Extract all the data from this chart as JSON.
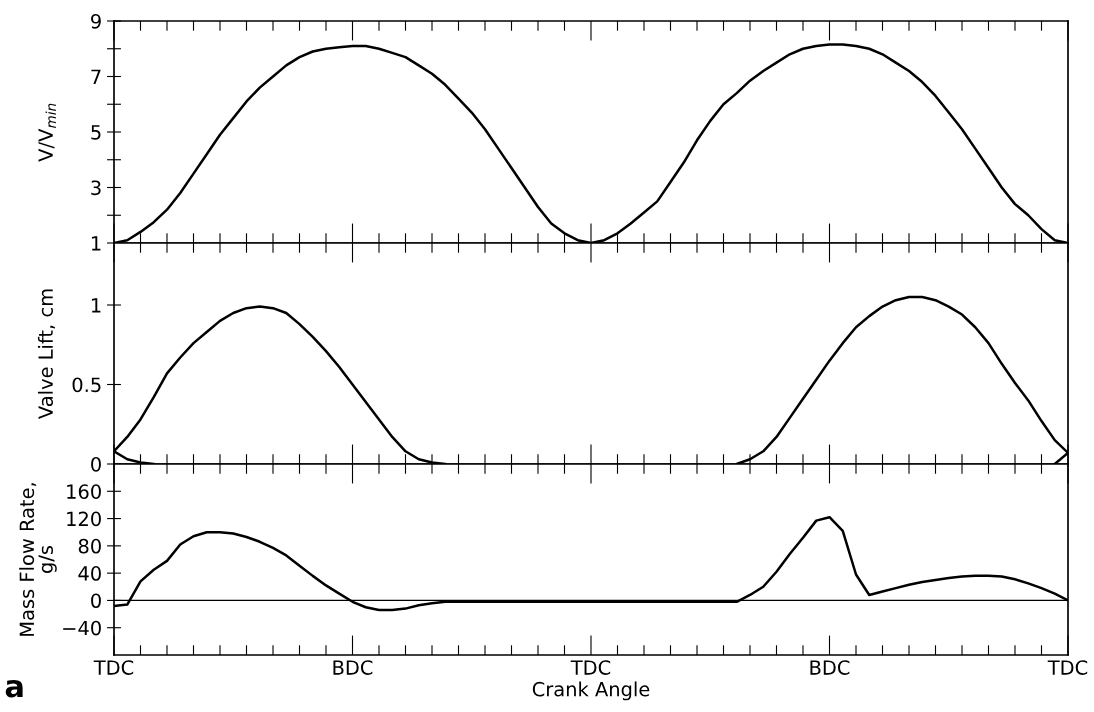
{
  "chart_data": [
    {
      "type": "line",
      "ylabel": "V/V$_{min}$",
      "ylim": [
        1,
        9
      ],
      "categories": [
        null,
        null,
        null,
        null,
        null,
        null,
        null,
        null,
        null,
        null,
        null,
        null,
        null,
        null,
        null,
        null,
        null,
        null,
        null,
        null,
        null,
        null,
        null,
        null,
        null,
        null,
        null,
        null,
        null,
        null,
        null,
        null,
        null,
        null,
        null,
        null,
        null,
        null,
        null,
        null,
        null,
        null,
        null,
        null,
        null,
        null,
        null,
        null,
        null,
        null,
        null,
        null,
        null,
        null,
        null,
        null,
        null,
        null,
        null,
        null,
        null,
        null,
        null,
        null,
        null,
        null,
        null,
        null,
        null,
        null,
        null,
        null,
        null
      ],
      "yticks": [
        1,
        {
          "value": 2,
          "label": null
        },
        3,
        {
          "value": 4,
          "label": null
        },
        5,
        {
          "value": 6,
          "label": null
        },
        7,
        {
          "value": 8,
          "label": null
        },
        9
      ],
      "tick_labels": "y",
      "line_style": "solid",
      "series": [
        {
          "color": "#000000",
          "values": [
            1.0,
            1.1,
            1.4,
            1.75,
            2.2,
            2.8,
            3.5,
            4.2,
            4.9,
            5.5,
            6.1,
            6.6,
            7.0,
            7.4,
            7.7,
            7.9,
            8.0,
            8.05,
            8.1,
            8.1,
            8.0,
            7.85,
            7.7,
            7.4,
            7.1,
            6.7,
            6.2,
            5.7,
            5.1,
            4.4,
            3.7,
            3.0,
            2.3,
            1.7,
            1.35,
            1.1,
            1.0,
            1.1,
            1.35,
            1.7,
            2.1,
            2.5,
            3.2,
            3.9,
            4.7,
            5.4,
            6.0,
            6.4,
            6.85,
            7.2,
            7.5,
            7.8,
            8.0,
            8.1,
            8.15,
            8.15,
            8.1,
            8.0,
            7.8,
            7.5,
            7.2,
            6.8,
            6.3,
            5.7,
            5.1,
            4.4,
            3.7,
            3.0,
            2.4,
            2.0,
            1.5,
            1.1,
            1.0
          ]
        }
      ]
    },
    {
      "type": "line",
      "ylabel": "Valve Lift, cm",
      "ylim": [
        0,
        1.39
      ],
      "categories": [
        null,
        null,
        null,
        null,
        null,
        null,
        null,
        null,
        null,
        null,
        null,
        null,
        null,
        null,
        null,
        null,
        null,
        null,
        null,
        null,
        null,
        null,
        null,
        null,
        null,
        null,
        null,
        null,
        null,
        null,
        null,
        null,
        null,
        null,
        null,
        null,
        null,
        null,
        null,
        null,
        null,
        null,
        null,
        null,
        null,
        null,
        null,
        null,
        null,
        null,
        null,
        null,
        null,
        null,
        null,
        null,
        null,
        null,
        null,
        null,
        null,
        null,
        null,
        null,
        null,
        null,
        null,
        null,
        null,
        null,
        null,
        null,
        null
      ],
      "yticks": [
        0,
        0.5,
        1
      ],
      "tick_labels": "y",
      "line_style": "solid",
      "series": [
        {
          "color": "#000000",
          "values": [
            0.08,
            0.17,
            0.28,
            0.42,
            0.57,
            0.67,
            0.76,
            0.83,
            0.9,
            0.95,
            0.98,
            0.99,
            0.98,
            0.95,
            0.88,
            0.8,
            0.71,
            0.61,
            0.5,
            0.39,
            0.28,
            0.17,
            0.08,
            0.03,
            0.01,
            0,
            null,
            null,
            null,
            null,
            null,
            null,
            null,
            null,
            null,
            null,
            null,
            null,
            null,
            null,
            null,
            null,
            null,
            null,
            null,
            null,
            null,
            null,
            null,
            null,
            null,
            null,
            null,
            null,
            null,
            null,
            null,
            null,
            null,
            null,
            null,
            null,
            null,
            null,
            null,
            null,
            null,
            null,
            null,
            null,
            null,
            0,
            0.07
          ]
        },
        {
          "color": "#000000",
          "values": [
            0.08,
            0.03,
            0.01,
            0,
            null,
            null,
            null,
            null,
            null,
            null,
            null,
            null,
            null,
            null,
            null,
            null,
            null,
            null,
            null,
            null,
            null,
            null,
            null,
            null,
            null,
            null,
            null,
            null,
            null,
            null,
            null,
            null,
            null,
            null,
            null,
            null,
            null,
            null,
            null,
            null,
            null,
            null,
            null,
            null,
            null,
            null,
            null,
            0,
            0.03,
            0.08,
            0.17,
            0.29,
            0.41,
            0.53,
            0.65,
            0.76,
            0.86,
            0.93,
            0.99,
            1.03,
            1.05,
            1.05,
            1.03,
            0.99,
            0.94,
            0.86,
            0.76,
            0.63,
            0.51,
            0.4,
            0.27,
            0.15,
            0.07
          ]
        }
      ]
    },
    {
      "type": "line",
      "ylabel": "Mass Flow Rate,\ng/s",
      "xlabel": "Crank Angle",
      "ylim": [
        -80,
        200
      ],
      "categories": [
        "TDC",
        null,
        null,
        null,
        null,
        null,
        null,
        null,
        null,
        null,
        null,
        null,
        null,
        null,
        null,
        null,
        null,
        null,
        "BDC",
        null,
        null,
        null,
        null,
        null,
        null,
        null,
        null,
        null,
        null,
        null,
        null,
        null,
        null,
        null,
        null,
        null,
        "TDC",
        null,
        null,
        null,
        null,
        null,
        null,
        null,
        null,
        null,
        null,
        null,
        null,
        null,
        null,
        null,
        null,
        null,
        "BDC",
        null,
        null,
        null,
        null,
        null,
        null,
        null,
        null,
        null,
        null,
        null,
        null,
        null,
        null,
        null,
        null,
        null,
        "TDC"
      ],
      "yticks": [
        {
          "value": -40,
          "label": "−40"
        },
        0,
        40,
        80,
        120,
        160
      ],
      "line_style": "solid",
      "ref_lines": [
        {
          "axis": "y",
          "value": 0,
          "color": "#000000"
        }
      ],
      "annotations": [
        "a"
      ],
      "series": [
        {
          "color": "#000000",
          "values": [
            -8,
            -6,
            28,
            45,
            58,
            82,
            94,
            100,
            100,
            98,
            93,
            86,
            77,
            66,
            51,
            36,
            22,
            10,
            -2,
            -10,
            -14,
            -14,
            -12,
            -7,
            -4,
            -2,
            -2,
            -2,
            -2,
            -2,
            -2,
            -2,
            -2,
            -2,
            -2,
            -2,
            -2,
            -2,
            -2,
            -2,
            -2,
            -2,
            -2,
            -2,
            -2,
            -2,
            -2,
            -2,
            8,
            20,
            42,
            68,
            92,
            117,
            122,
            102,
            38,
            8,
            13,
            18,
            23,
            27,
            30,
            33,
            35,
            36,
            36,
            35,
            31,
            25,
            18,
            10,
            0
          ]
        }
      ]
    }
  ]
}
